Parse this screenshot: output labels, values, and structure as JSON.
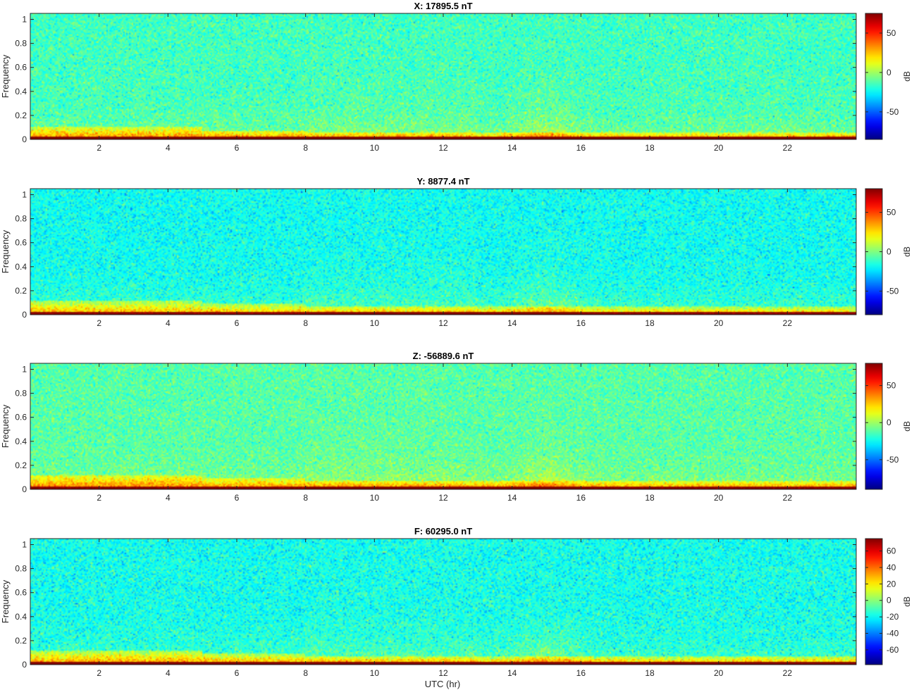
{
  "figure": {
    "xlabel": "UTC (hr)"
  },
  "chart_data": [
    {
      "type": "heatmap",
      "title": "X: 17895.5 nT",
      "ylabel": "Frequency",
      "xlim": [
        0,
        24
      ],
      "ylim": [
        0,
        1.05
      ],
      "x_ticks": [
        2,
        4,
        6,
        8,
        10,
        12,
        14,
        16,
        18,
        20,
        22
      ],
      "y_ticks": [
        0,
        0.2,
        0.4,
        0.6,
        0.8,
        1
      ],
      "colorbar": {
        "label": "dB",
        "limits": [
          -85,
          75
        ],
        "ticks": [
          50,
          0,
          -50
        ]
      },
      "colormap": "jet",
      "features": {
        "low_freq_band_max": 0.1,
        "disturbance_center_hr": 15,
        "background_dB": -15,
        "band_dB": 35
      }
    },
    {
      "type": "heatmap",
      "title": "Y: 8877.4 nT",
      "ylabel": "Frequency",
      "xlim": [
        0,
        24
      ],
      "ylim": [
        0,
        1.05
      ],
      "x_ticks": [
        2,
        4,
        6,
        8,
        10,
        12,
        14,
        16,
        18,
        20,
        22
      ],
      "y_ticks": [
        0,
        0.2,
        0.4,
        0.6,
        0.8,
        1
      ],
      "colorbar": {
        "label": "dB",
        "limits": [
          -80,
          80
        ],
        "ticks": [
          50,
          0,
          -50
        ]
      },
      "colormap": "jet",
      "features": {
        "low_freq_band_max": 0.12,
        "disturbance_center_hr": 15,
        "background_dB": -18,
        "band_dB": 35
      }
    },
    {
      "type": "heatmap",
      "title": "Z: -56889.6 nT",
      "ylabel": "Frequency",
      "xlim": [
        0,
        24
      ],
      "ylim": [
        0,
        1.05
      ],
      "x_ticks": [
        2,
        4,
        6,
        8,
        10,
        12,
        14,
        16,
        18,
        20,
        22
      ],
      "y_ticks": [
        0,
        0.2,
        0.4,
        0.6,
        0.8,
        1
      ],
      "colorbar": {
        "label": "dB",
        "limits": [
          -90,
          80
        ],
        "ticks": [
          50,
          0,
          -50
        ]
      },
      "colormap": "jet",
      "features": {
        "low_freq_band_max": 0.12,
        "disturbance_center_hr": 15,
        "background_dB": -12,
        "band_dB": 38
      }
    },
    {
      "type": "heatmap",
      "title": "F: 60295.0 nT",
      "ylabel": "Frequency",
      "xlim": [
        0,
        24
      ],
      "ylim": [
        0,
        1.05
      ],
      "x_ticks": [
        2,
        4,
        6,
        8,
        10,
        12,
        14,
        16,
        18,
        20,
        22
      ],
      "y_ticks": [
        0,
        0.2,
        0.4,
        0.6,
        0.8,
        1
      ],
      "colorbar": {
        "label": "dB",
        "limits": [
          -78,
          75
        ],
        "ticks": [
          60,
          40,
          20,
          0,
          -20,
          -40,
          -60
        ]
      },
      "colormap": "jet",
      "features": {
        "low_freq_band_max": 0.12,
        "disturbance_center_hr": 15,
        "background_dB": -18,
        "band_dB": 35
      }
    }
  ]
}
